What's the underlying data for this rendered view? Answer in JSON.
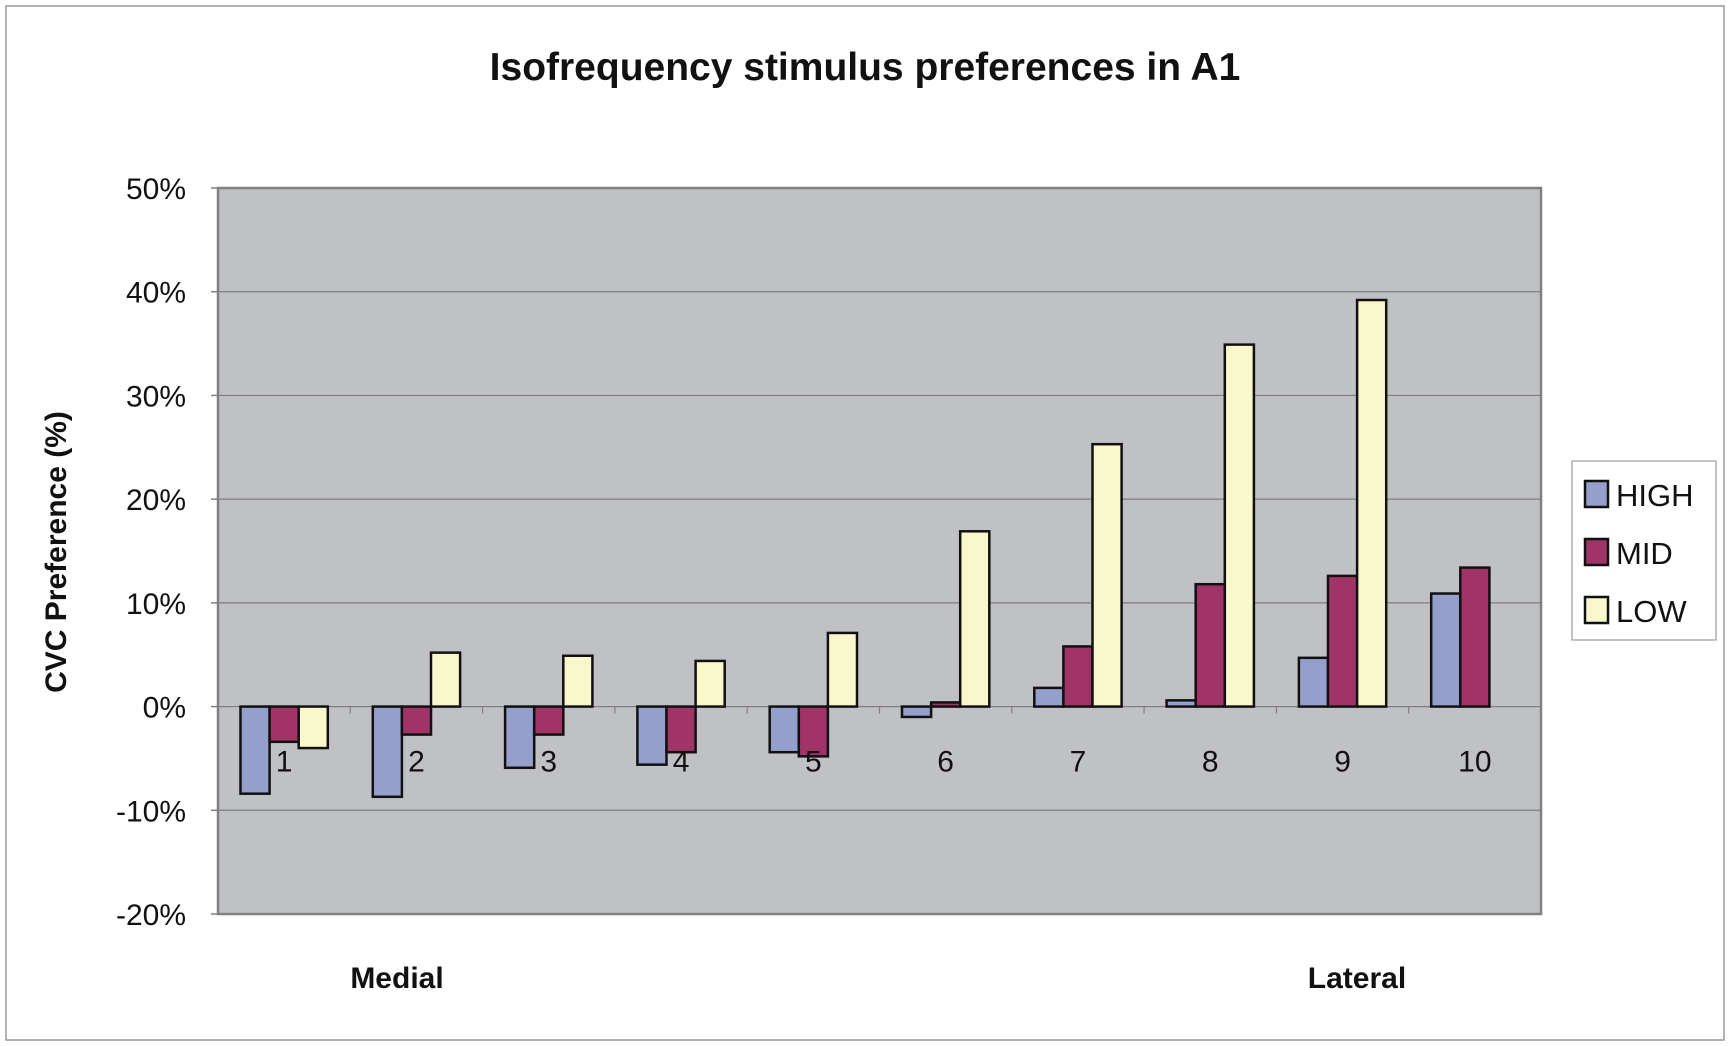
{
  "chart_data": {
    "type": "bar",
    "title": "Isofrequency stimulus preferences in A1",
    "xlabel": "",
    "ylabel": "CVC Preference (%)",
    "x_annotations": [
      "Medial",
      "Lateral"
    ],
    "categories": [
      "1",
      "2",
      "3",
      "4",
      "5",
      "6",
      "7",
      "8",
      "9",
      "10"
    ],
    "ylim": [
      -20,
      50
    ],
    "yticks": [
      -20,
      -10,
      0,
      10,
      20,
      30,
      40,
      50
    ],
    "ytick_labels": [
      "-20%",
      "-10%",
      "0%",
      "10%",
      "20%",
      "30%",
      "40%",
      "50%"
    ],
    "grid": true,
    "legend_position": "right",
    "series": [
      {
        "name": "HIGH",
        "color": "#949fcb",
        "values": [
          -8.4,
          -8.7,
          -5.9,
          -5.6,
          -4.4,
          -1.0,
          1.8,
          0.6,
          4.7,
          10.9
        ]
      },
      {
        "name": "MID",
        "color": "#a03467",
        "values": [
          -3.4,
          -2.7,
          -2.7,
          -4.4,
          -4.8,
          0.4,
          5.8,
          11.8,
          12.6,
          13.4
        ]
      },
      {
        "name": "LOW",
        "color": "#f9f7cc",
        "values": [
          -4.0,
          5.2,
          4.9,
          4.4,
          7.1,
          16.9,
          25.3,
          34.9,
          39.2,
          null
        ]
      }
    ],
    "plot_background": "#c0c1c5"
  }
}
